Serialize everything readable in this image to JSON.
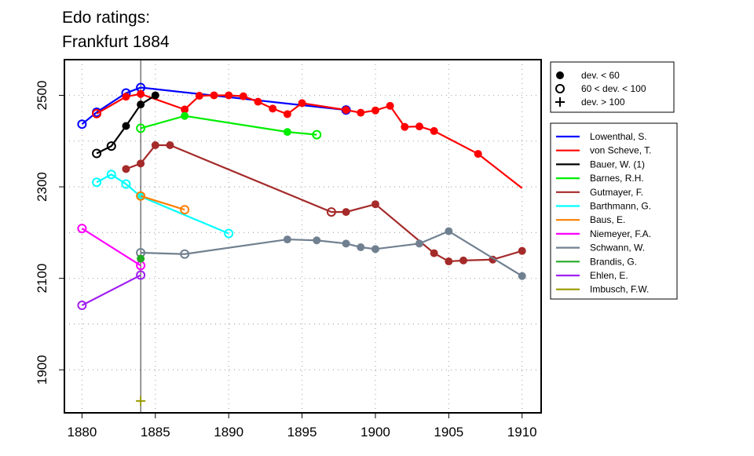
{
  "chart_data": {
    "type": "line",
    "title_line1": "Edo ratings:",
    "title_line2": "Frankfurt 1884",
    "xlabel": "",
    "ylabel": "",
    "xlim": [
      1878.8,
      1911.3
    ],
    "ylim": [
      1806,
      2578
    ],
    "x_ticks": [
      1880,
      1885,
      1890,
      1895,
      1900,
      1905,
      1910
    ],
    "y_ticks": [
      1900,
      2100,
      2300,
      2500
    ],
    "grid": true,
    "vline_year": 1884,
    "legend_markers": [
      {
        "marker": "filled",
        "label": "dev. < 60"
      },
      {
        "marker": "open",
        "label": "60 < dev. < 100"
      },
      {
        "marker": "plus",
        "label": "dev. > 100"
      }
    ],
    "series": [
      {
        "name": "Lowenthal, S.",
        "color": "#0000ff",
        "points": [
          [
            1880,
            2437,
            "o"
          ],
          [
            1881,
            2463,
            "o"
          ],
          [
            1883,
            2505,
            "o"
          ],
          [
            1884,
            2517,
            "o"
          ],
          [
            1898,
            2468,
            "o"
          ]
        ]
      },
      {
        "name": "von Scheve, T.",
        "color": "#ff0000",
        "points": [
          [
            1881,
            2460,
            "o"
          ],
          [
            1883,
            2497,
            "f"
          ],
          [
            1884,
            2503,
            "f"
          ],
          [
            1887,
            2469,
            "f"
          ],
          [
            1888,
            2499,
            "f"
          ],
          [
            1889,
            2500,
            "f"
          ],
          [
            1890,
            2500,
            "f"
          ],
          [
            1891,
            2498,
            "f"
          ],
          [
            1892,
            2486,
            "f"
          ],
          [
            1893,
            2471,
            "f"
          ],
          [
            1894,
            2459,
            "f"
          ],
          [
            1895,
            2483,
            "f"
          ],
          [
            1898,
            2468,
            "f"
          ],
          [
            1899,
            2462,
            "f"
          ],
          [
            1900,
            2467,
            "f"
          ],
          [
            1901,
            2477,
            "f"
          ],
          [
            1902,
            2431,
            "f"
          ],
          [
            1903,
            2432,
            "f"
          ],
          [
            1904,
            2422,
            "f"
          ],
          [
            1907,
            2372,
            "f"
          ],
          [
            1910,
            2297,
            null
          ]
        ]
      },
      {
        "name": "Bauer, W. (1)",
        "color": "#000000",
        "points": [
          [
            1881,
            2373,
            "o"
          ],
          [
            1882,
            2389,
            "o"
          ],
          [
            1883,
            2433,
            "f"
          ],
          [
            1884,
            2480,
            "f"
          ],
          [
            1885,
            2500,
            "f"
          ]
        ]
      },
      {
        "name": "Barnes, R.H.",
        "color": "#00ee00",
        "points": [
          [
            1884,
            2428,
            "o"
          ],
          [
            1887,
            2455,
            "f"
          ],
          [
            1894,
            2420,
            "f"
          ],
          [
            1896,
            2414,
            "o"
          ]
        ]
      },
      {
        "name": "Gutmayer, F.",
        "color": "#a52a2a",
        "points": [
          [
            1883,
            2339,
            "f"
          ],
          [
            1884,
            2351,
            "f"
          ],
          [
            1885,
            2391,
            "f"
          ],
          [
            1886,
            2391,
            "f"
          ],
          [
            1897,
            2245,
            "o"
          ],
          [
            1898,
            2245,
            "f"
          ],
          [
            1900,
            2262,
            "f"
          ],
          [
            1904,
            2155,
            "f"
          ],
          [
            1905,
            2137,
            "f"
          ],
          [
            1906,
            2139,
            "f"
          ],
          [
            1908,
            2141,
            "f"
          ],
          [
            1910,
            2160,
            "f"
          ]
        ]
      },
      {
        "name": "Barthmann, G.",
        "color": "#00ffff",
        "points": [
          [
            1881,
            2310,
            "o"
          ],
          [
            1882,
            2327,
            "o"
          ],
          [
            1883,
            2306,
            "o"
          ],
          [
            1884,
            2279,
            "f"
          ],
          [
            1890,
            2198,
            "o"
          ]
        ]
      },
      {
        "name": "Baus, E.",
        "color": "#ff7f00",
        "points": [
          [
            1884,
            2280,
            "o"
          ],
          [
            1887,
            2250,
            "o"
          ]
        ]
      },
      {
        "name": "Niemeyer, F.A.",
        "color": "#ff00ff",
        "points": [
          [
            1880,
            2209,
            "o"
          ],
          [
            1884,
            2128,
            "o"
          ]
        ]
      },
      {
        "name": "Schwann, W.",
        "color": "#708090",
        "points": [
          [
            1884,
            2156,
            "o"
          ],
          [
            1887,
            2153,
            "o"
          ],
          [
            1894,
            2185,
            "f"
          ],
          [
            1896,
            2183,
            "f"
          ],
          [
            1898,
            2176,
            "f"
          ],
          [
            1899,
            2168,
            "f"
          ],
          [
            1900,
            2164,
            "f"
          ],
          [
            1903,
            2176,
            "f"
          ],
          [
            1905,
            2203,
            "f"
          ],
          [
            1910,
            2105,
            "f"
          ]
        ]
      },
      {
        "name": "Brandis, G.",
        "color": "#22aa22",
        "points": [
          [
            1884,
            2143,
            "f"
          ]
        ]
      },
      {
        "name": "Ehlen, E.",
        "color": "#a020f0",
        "points": [
          [
            1880,
            2041,
            "o"
          ],
          [
            1884,
            2107,
            "o"
          ]
        ]
      },
      {
        "name": "Imbusch, F.W.",
        "color": "#999900",
        "points": [
          [
            1884,
            1832,
            "p"
          ]
        ]
      }
    ]
  }
}
